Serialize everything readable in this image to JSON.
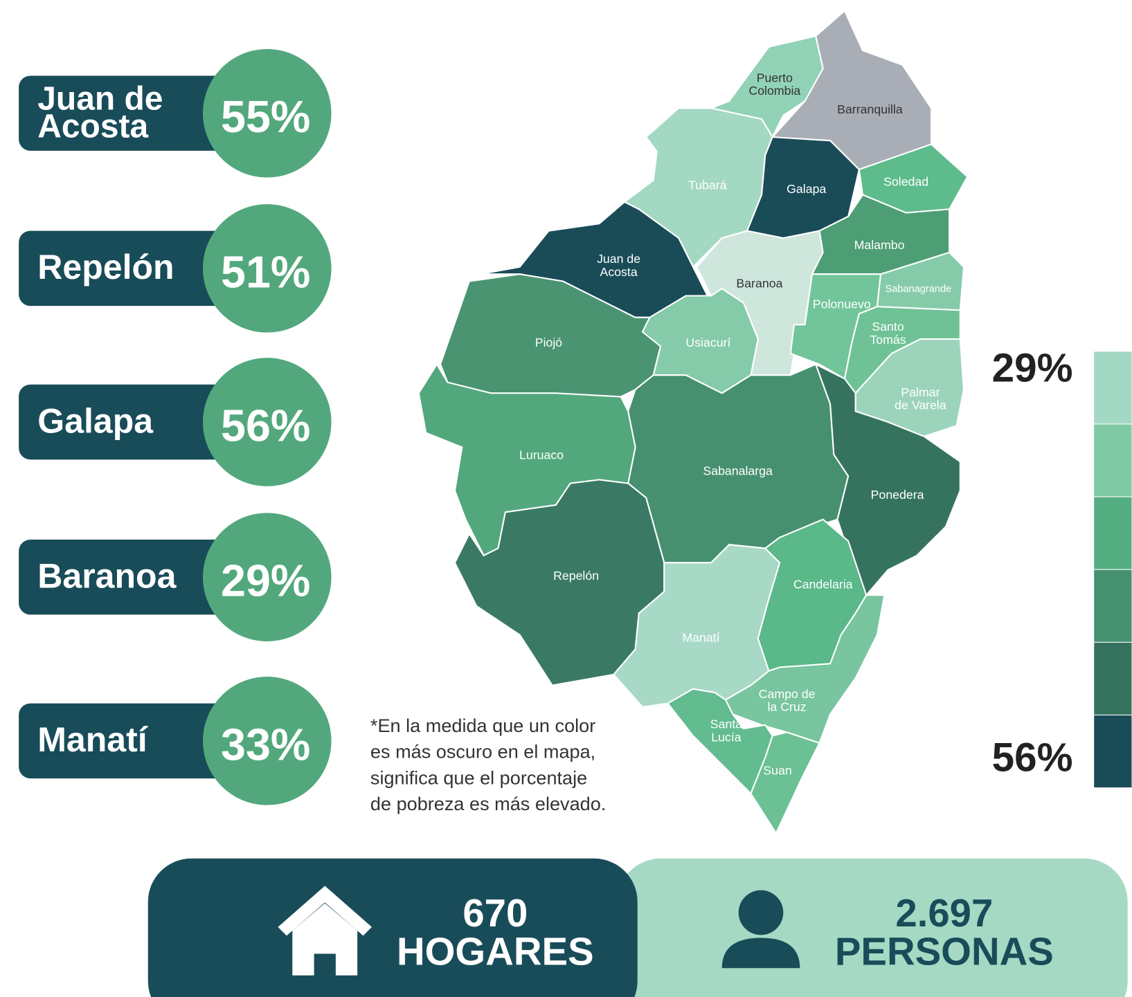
{
  "highlights": [
    {
      "name": [
        "Juan de",
        "Acosta"
      ],
      "value": "55%"
    },
    {
      "name": [
        "Repelón"
      ],
      "value": "51%"
    },
    {
      "name": [
        "Galapa"
      ],
      "value": "56%"
    },
    {
      "name": [
        "Baranoa"
      ],
      "value": "29%"
    },
    {
      "name": [
        "Manatí"
      ],
      "value": "33%"
    }
  ],
  "map": {
    "regions": [
      {
        "label": [
          "Puerto",
          "Colombia"
        ],
        "color": "#92d2b6"
      },
      {
        "label": [
          "Barranquilla"
        ],
        "color": "#a9aeb6"
      },
      {
        "label": [
          "Tubará"
        ],
        "color": "#a3d8c2"
      },
      {
        "label": [
          "Galapa"
        ],
        "color": "#1a4c58"
      },
      {
        "label": [
          "Soledad"
        ],
        "color": "#5dbb8c"
      },
      {
        "label": [
          "Malambo"
        ],
        "color": "#4e9e75"
      },
      {
        "label": [
          "Baranoa"
        ],
        "color": "#cfe6dd"
      },
      {
        "label": [
          "Juan de",
          "Acosta"
        ],
        "color": "#1a4c58"
      },
      {
        "label": [
          "Piojó"
        ],
        "color": "#4a9472"
      },
      {
        "label": [
          "Usiacurí"
        ],
        "color": "#85cba9"
      },
      {
        "label": [
          "Polonuevo"
        ],
        "color": "#72c59b"
      },
      {
        "label": [
          "Sabanagrande"
        ],
        "color": "#85cba9"
      },
      {
        "label": [
          "Santo",
          "Tomás"
        ],
        "color": "#6fc296"
      },
      {
        "label": [
          "Palmar",
          "de Varela"
        ],
        "color": "#9cd4bb"
      },
      {
        "label": [
          "Sabanalarga"
        ],
        "color": "#469070"
      },
      {
        "label": [
          "Ponedera"
        ],
        "color": "#36735f"
      },
      {
        "label": [
          "Luruaco"
        ],
        "color": "#52a87c"
      },
      {
        "label": [
          "Repelón"
        ],
        "color": "#3a7a65"
      },
      {
        "label": [
          "Manatí"
        ],
        "color": "#a8d9c6"
      },
      {
        "label": [
          "Candelaria"
        ],
        "color": "#5ab889"
      },
      {
        "label": [
          "Campo de",
          "la Cruz"
        ],
        "color": "#78c59f"
      },
      {
        "label": [
          "Santa",
          "Lucía"
        ],
        "color": "#62bc8f"
      },
      {
        "label": [
          "Suan"
        ],
        "color": "#6bc094"
      }
    ]
  },
  "legend": {
    "low": "29%",
    "high": "56%",
    "colors": [
      "#a3d8c4",
      "#7fcaa5",
      "#54ad80",
      "#45906f",
      "#36735f",
      "#1a4c58"
    ]
  },
  "note": [
    "*En la medida que un color",
    "es más oscuro en el mapa,",
    "significa que el porcentaje",
    "de pobreza es más elevado."
  ],
  "stats": [
    {
      "value": "670",
      "label": "HOGARES"
    },
    {
      "value": "2.697",
      "label": "PERSONAS"
    }
  ]
}
